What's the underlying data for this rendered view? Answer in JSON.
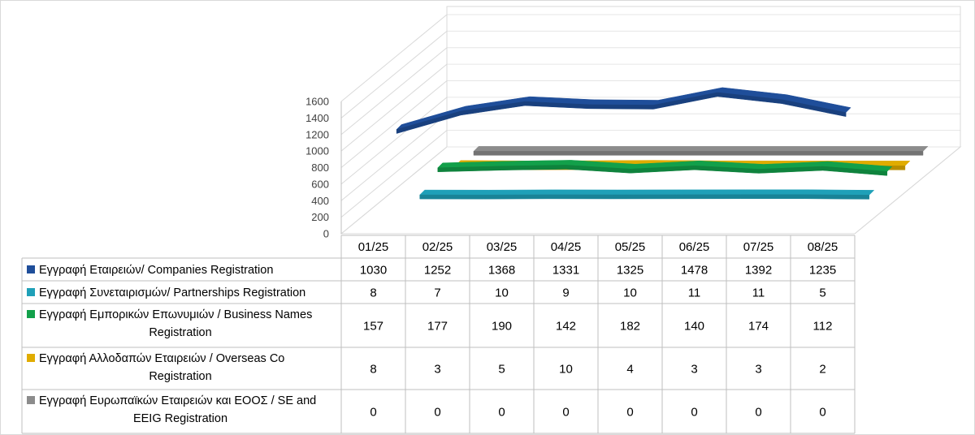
{
  "chart_data": {
    "type": "line",
    "categories": [
      "01/25",
      "02/25",
      "03/25",
      "04/25",
      "05/25",
      "06/25",
      "07/25",
      "08/25"
    ],
    "series": [
      {
        "name": "Εγγραφή Εταιρειών/ Companies Registration",
        "name_lines": [
          "Εγγραφή Εταιρειών/ Companies Registration"
        ],
        "values": [
          1030,
          1252,
          1368,
          1331,
          1325,
          1478,
          1392,
          1235
        ],
        "color": "#1f4e9a"
      },
      {
        "name": "Εγγραφή Συνεταιρισμών/ Partnerships Registration",
        "name_lines": [
          "Εγγραφή Συνεταιρισμών/ Partnerships Registration"
        ],
        "values": [
          8,
          7,
          10,
          9,
          10,
          11,
          11,
          5
        ],
        "color": "#1fa0b8"
      },
      {
        "name": "Εγγραφή Εμπορικών Επωνυμιών / Business Names Registration",
        "name_lines": [
          "Εγγραφή Εμπορικών Επωνυμιών / Business Names",
          "Registration"
        ],
        "values": [
          157,
          177,
          190,
          142,
          182,
          140,
          174,
          112
        ],
        "color": "#12a04a"
      },
      {
        "name": "Εγγραφή Αλλοδαπών Εταιρειών / Overseas Co Registration",
        "name_lines": [
          "Εγγραφή Αλλοδαπών Εταιρειών / Overseas Co",
          "Registration"
        ],
        "values": [
          8,
          3,
          5,
          10,
          4,
          3,
          3,
          2
        ],
        "color": "#e0ac00"
      },
      {
        "name": "Εγγραφή Ευρωπαϊκών Εταιρειών και ΕΟΟΣ / SE and EEIG Registration",
        "name_lines": [
          "Εγγραφή Ευρωπαϊκών Εταιρειών και ΕΟΟΣ / SE and",
          "EEIG Registration"
        ],
        "values": [
          0,
          0,
          0,
          0,
          0,
          0,
          0,
          0
        ],
        "color": "#8c8c8c"
      }
    ],
    "yticks": [
      "0",
      "200",
      "400",
      "600",
      "800",
      "1000",
      "1200",
      "1400",
      "1600"
    ],
    "ylim": [
      0,
      1600
    ],
    "grid": true,
    "legend": "data-table"
  }
}
